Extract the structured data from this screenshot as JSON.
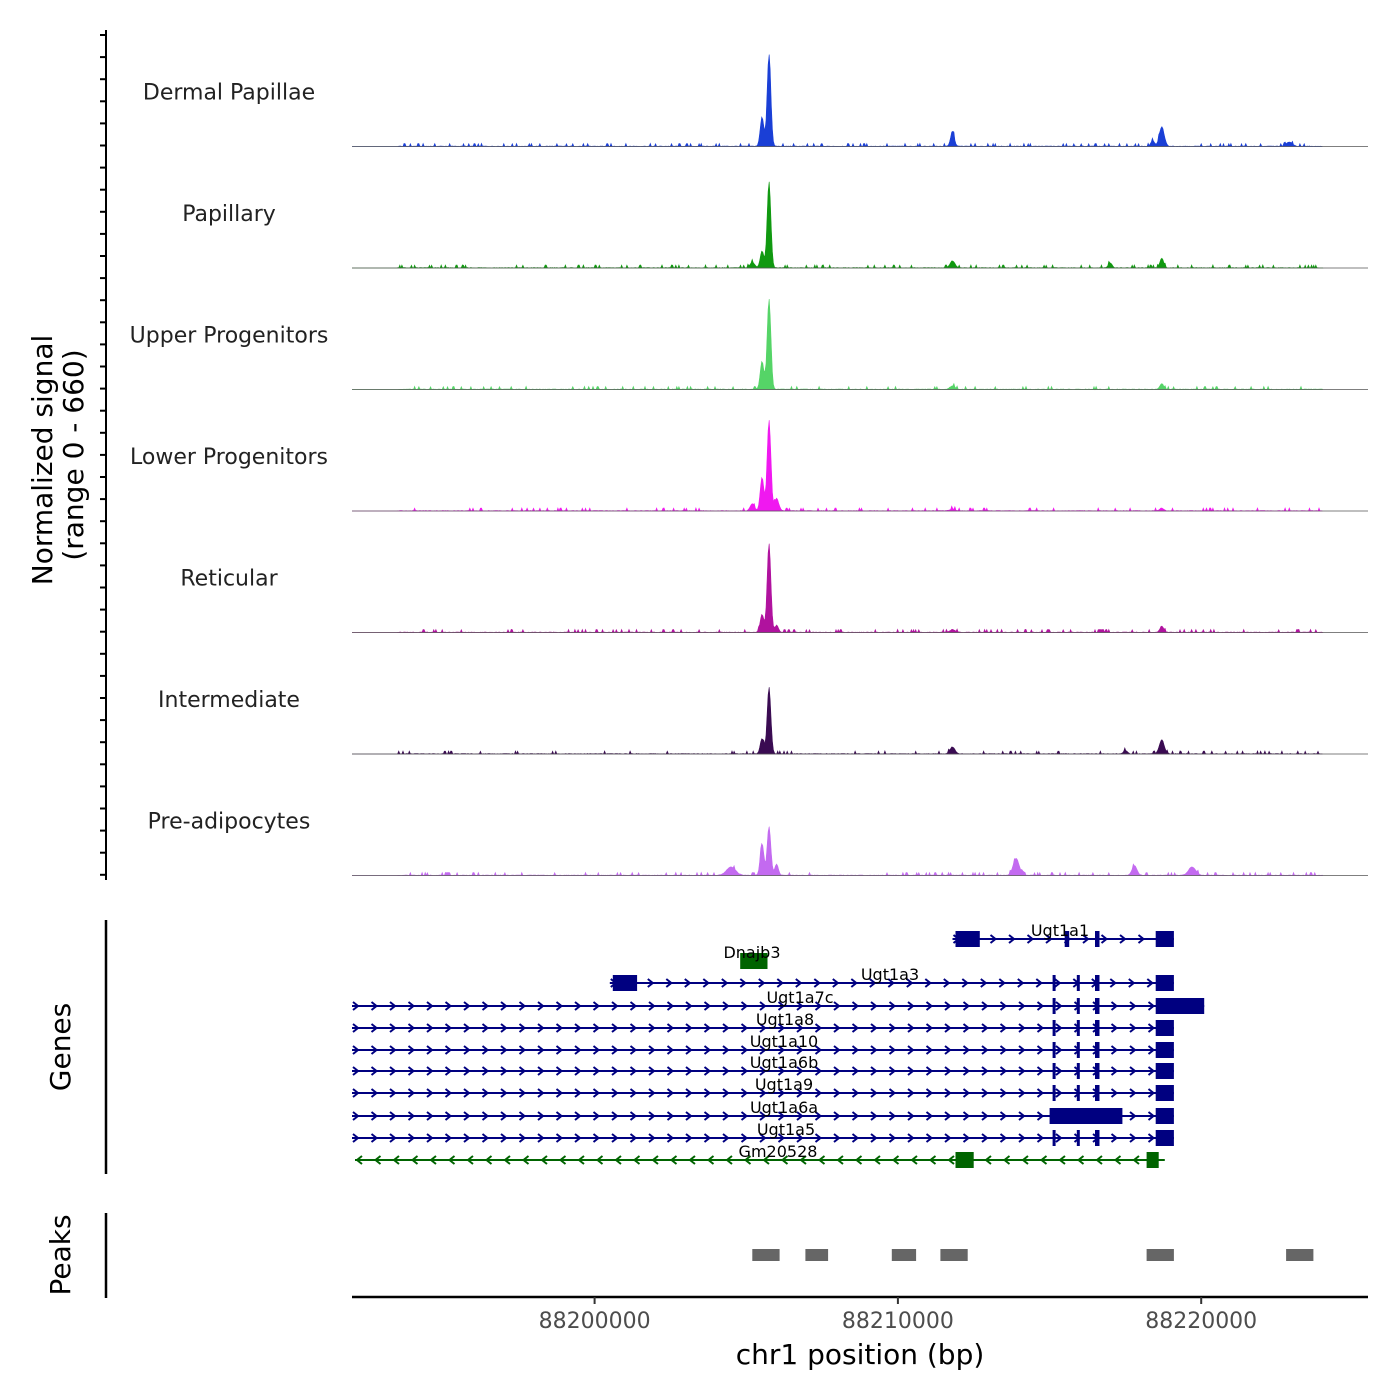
{
  "chart_data": {
    "type": "area",
    "chromosome": "chr1",
    "xlabel": "chr1 position (bp)",
    "xlim": [
      88192000,
      88225500
    ],
    "xticks": [
      88200000,
      88210000,
      88220000
    ],
    "xtick_labels": [
      "88200000",
      "88210000",
      "88220000"
    ],
    "coverage": {
      "ylabel_line1": "Normalized signal",
      "ylabel_line2": "(range 0 - 660)",
      "ylim": [
        0,
        660
      ],
      "tracks": [
        {
          "name": "Dermal Papillae",
          "color": "#1a3fd6",
          "peaks": [
            [
              88205520,
              210,
              60
            ],
            [
              88205750,
              660,
              60
            ],
            [
              88211800,
              110,
              60
            ],
            [
              88218700,
              140,
              80
            ],
            [
              88218400,
              40,
              60
            ],
            [
              88222900,
              30,
              100
            ]
          ]
        },
        {
          "name": "Papillary",
          "color": "#109910",
          "peaks": [
            [
              88205200,
              40,
              80
            ],
            [
              88205520,
              120,
              60
            ],
            [
              88205750,
              620,
              60
            ],
            [
              88211800,
              50,
              80
            ],
            [
              88218700,
              70,
              60
            ],
            [
              88217000,
              35,
              60
            ]
          ]
        },
        {
          "name": "Upper Progenitors",
          "color": "#55d467",
          "peaks": [
            [
              88205520,
              200,
              60
            ],
            [
              88205750,
              650,
              60
            ],
            [
              88211800,
              25,
              80
            ],
            [
              88218700,
              40,
              60
            ]
          ]
        },
        {
          "name": "Lower Progenitors",
          "color": "#f018f0",
          "peaks": [
            [
              88205200,
              50,
              70
            ],
            [
              88205520,
              240,
              60
            ],
            [
              88205750,
              650,
              60
            ],
            [
              88206000,
              90,
              70
            ],
            [
              88211800,
              15,
              80
            ],
            [
              88218700,
              20,
              60
            ]
          ]
        },
        {
          "name": "Reticular",
          "color": "#b0129e",
          "peaks": [
            [
              88205520,
              130,
              60
            ],
            [
              88205750,
              640,
              60
            ],
            [
              88206000,
              50,
              60
            ],
            [
              88211800,
              20,
              80
            ],
            [
              88218700,
              45,
              60
            ]
          ]
        },
        {
          "name": "Intermediate",
          "color": "#3a0b52",
          "peaks": [
            [
              88205520,
              110,
              60
            ],
            [
              88205750,
              480,
              60
            ],
            [
              88211800,
              50,
              80
            ],
            [
              88218700,
              100,
              80
            ],
            [
              88217500,
              25,
              60
            ]
          ]
        },
        {
          "name": "Pre-adipocytes",
          "color": "#c36af0",
          "peaks": [
            [
              88204500,
              60,
              150
            ],
            [
              88205520,
              230,
              60
            ],
            [
              88205750,
              350,
              60
            ],
            [
              88206000,
              80,
              60
            ],
            [
              88213900,
              120,
              100
            ],
            [
              88217800,
              70,
              80
            ],
            [
              88219700,
              60,
              120
            ]
          ]
        }
      ]
    },
    "genes": {
      "ylabel": "Genes",
      "items": [
        {
          "name": "Ugt1a1",
          "color": "#000080",
          "strand": "+",
          "start": 88211800,
          "end": 88219100,
          "exons": [
            [
              88211900,
              88212700
            ],
            [
              88215500,
              88215650
            ],
            [
              88216500,
              88216650
            ],
            [
              88218500,
              88219100
            ]
          ]
        },
        {
          "name": "Dnajb3",
          "color": "#006400",
          "strand": "+",
          "start": 88204800,
          "end": 88205700,
          "exons": [
            [
              88204800,
              88205700
            ]
          ]
        },
        {
          "name": "Ugt1a3",
          "color": "#000080",
          "strand": "+",
          "start": 88200500,
          "end": 88219100,
          "exons": [
            [
              88200600,
              88201400
            ],
            [
              88215100,
              88215200
            ],
            [
              88215900,
              88216000
            ],
            [
              88216500,
              88216650
            ],
            [
              88218500,
              88219100
            ]
          ]
        },
        {
          "name": "Ugt1a7c",
          "color": "#000080",
          "strand": "+",
          "start": 88192000,
          "end": 88220100,
          "exons": [
            [
              88215100,
              88215200
            ],
            [
              88215900,
              88216000
            ],
            [
              88216500,
              88216650
            ],
            [
              88218500,
              88220100
            ]
          ]
        },
        {
          "name": "Ugt1a8",
          "color": "#000080",
          "strand": "+",
          "start": 88192000,
          "end": 88219100,
          "exons": [
            [
              88215100,
              88215200
            ],
            [
              88215900,
              88216000
            ],
            [
              88216500,
              88216650
            ],
            [
              88218500,
              88219100
            ]
          ]
        },
        {
          "name": "Ugt1a10",
          "color": "#000080",
          "strand": "+",
          "start": 88192000,
          "end": 88219100,
          "exons": [
            [
              88215100,
              88215200
            ],
            [
              88215900,
              88216000
            ],
            [
              88216500,
              88216650
            ],
            [
              88218500,
              88219100
            ]
          ]
        },
        {
          "name": "Ugt1a6b",
          "color": "#000080",
          "strand": "+",
          "start": 88192000,
          "end": 88219100,
          "exons": [
            [
              88215100,
              88215200
            ],
            [
              88215900,
              88216000
            ],
            [
              88216500,
              88216650
            ],
            [
              88218500,
              88219100
            ]
          ]
        },
        {
          "name": "Ugt1a9",
          "color": "#000080",
          "strand": "+",
          "start": 88192000,
          "end": 88219100,
          "exons": [
            [
              88215100,
              88215200
            ],
            [
              88215900,
              88216000
            ],
            [
              88216500,
              88216650
            ],
            [
              88218500,
              88219100
            ]
          ]
        },
        {
          "name": "Ugt1a6a",
          "color": "#000080",
          "strand": "+",
          "start": 88192000,
          "end": 88219100,
          "exons": [
            [
              88215000,
              88217400
            ],
            [
              88218500,
              88219100
            ]
          ]
        },
        {
          "name": "Ugt1a5",
          "color": "#000080",
          "strand": "+",
          "start": 88192000,
          "end": 88219100,
          "exons": [
            [
              88215100,
              88215200
            ],
            [
              88215900,
              88216000
            ],
            [
              88216500,
              88216650
            ],
            [
              88218500,
              88219100
            ]
          ]
        },
        {
          "name": "Gm20528",
          "color": "#006400",
          "strand": "-",
          "start": 88192100,
          "end": 88218800,
          "exons": [
            [
              88211900,
              88212500
            ],
            [
              88218200,
              88218600
            ]
          ]
        }
      ]
    },
    "peaks": {
      "ylabel": "Peaks",
      "color": "#666666",
      "regions": [
        [
          88205200,
          88206100
        ],
        [
          88206950,
          88207700
        ],
        [
          88209800,
          88210600
        ],
        [
          88211400,
          88212300
        ],
        [
          88218200,
          88219100
        ],
        [
          88222800,
          88223700
        ]
      ]
    }
  }
}
